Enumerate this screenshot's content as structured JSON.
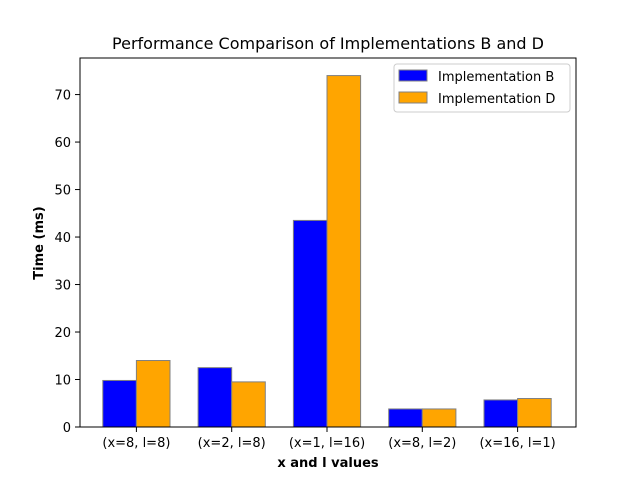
{
  "chart_data": {
    "type": "bar",
    "title": "Performance Comparison of Implementations B and D",
    "xlabel": "x and l values",
    "ylabel": "Time (ms)",
    "categories": [
      "(x=8, l=8)",
      "(x=2, l=8)",
      "(x=1, l=16)",
      "(x=8, l=2)",
      "(x=16, l=1)"
    ],
    "series": [
      {
        "name": "Implementation B",
        "color": "#0000ff",
        "values": [
          9.8,
          12.5,
          43.5,
          3.8,
          5.7
        ]
      },
      {
        "name": "Implementation D",
        "color": "#ffa500",
        "values": [
          14.0,
          9.5,
          74.0,
          3.8,
          6.0
        ]
      }
    ],
    "ylim": [
      0,
      77.7
    ],
    "yticks": [
      0,
      10,
      20,
      30,
      40,
      50,
      60,
      70
    ],
    "grid": false,
    "legend_position": "top-right",
    "bar_edge_color": "#808080"
  }
}
